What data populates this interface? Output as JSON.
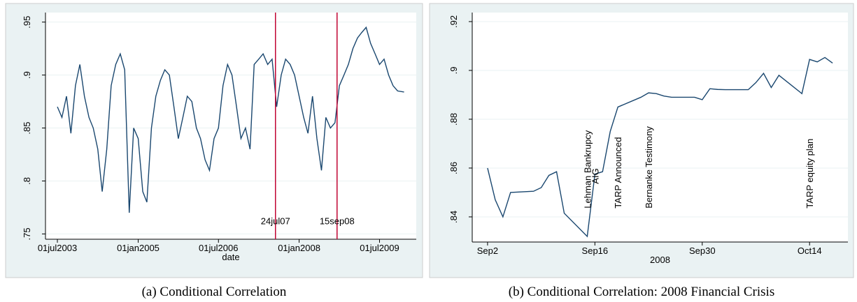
{
  "chart_data": [
    {
      "type": "line",
      "caption": "(a) Conditional Correlation",
      "xlabel": "date",
      "x": [
        "2003-07-01",
        "2003-08-01",
        "2003-09-01",
        "2003-10-01",
        "2003-11-01",
        "2003-12-01",
        "2004-01-01",
        "2004-02-01",
        "2004-03-01",
        "2004-04-01",
        "2004-05-01",
        "2004-06-01",
        "2004-07-01",
        "2004-08-01",
        "2004-09-01",
        "2004-10-01",
        "2004-11-01",
        "2004-12-01",
        "2005-01-01",
        "2005-02-01",
        "2005-03-01",
        "2005-04-01",
        "2005-05-01",
        "2005-06-01",
        "2005-07-01",
        "2005-08-01",
        "2005-09-01",
        "2005-10-01",
        "2005-11-01",
        "2005-12-01",
        "2006-01-01",
        "2006-02-01",
        "2006-03-01",
        "2006-04-01",
        "2006-05-01",
        "2006-06-01",
        "2006-07-01",
        "2006-08-01",
        "2006-09-01",
        "2006-10-01",
        "2006-11-01",
        "2006-12-01",
        "2007-01-01",
        "2007-02-01",
        "2007-03-01",
        "2007-04-01",
        "2007-05-01",
        "2007-06-01",
        "2007-07-01",
        "2007-08-01",
        "2007-09-01",
        "2007-10-01",
        "2007-11-01",
        "2007-12-01",
        "2008-01-01",
        "2008-02-01",
        "2008-03-01",
        "2008-04-01",
        "2008-05-01",
        "2008-06-01",
        "2008-07-01",
        "2008-08-01",
        "2008-09-01",
        "2008-10-01",
        "2008-11-01",
        "2008-12-01",
        "2009-01-01",
        "2009-02-01",
        "2009-03-01",
        "2009-04-01",
        "2009-05-01",
        "2009-06-01",
        "2009-07-01",
        "2009-08-01",
        "2009-09-01",
        "2009-10-01",
        "2009-11-01",
        "2009-12-15"
      ],
      "series": [
        {
          "name": "Conditional correlation",
          "color": "#1a476f",
          "values": [
            0.87,
            0.86,
            0.88,
            0.845,
            0.89,
            0.91,
            0.88,
            0.86,
            0.85,
            0.83,
            0.79,
            0.83,
            0.89,
            0.91,
            0.92,
            0.905,
            0.77,
            0.85,
            0.84,
            0.79,
            0.78,
            0.85,
            0.88,
            0.895,
            0.905,
            0.9,
            0.87,
            0.84,
            0.86,
            0.88,
            0.875,
            0.85,
            0.84,
            0.82,
            0.81,
            0.84,
            0.85,
            0.89,
            0.91,
            0.9,
            0.87,
            0.84,
            0.85,
            0.83,
            0.91,
            0.915,
            0.92,
            0.91,
            0.915,
            0.87,
            0.9,
            0.915,
            0.91,
            0.9,
            0.88,
            0.86,
            0.845,
            0.88,
            0.84,
            0.81,
            0.86,
            0.85,
            0.855,
            0.89,
            0.9,
            0.91,
            0.925,
            0.935,
            0.94,
            0.945,
            0.93,
            0.92,
            0.91,
            0.915,
            0.9,
            0.89,
            0.885,
            0.884
          ]
        }
      ],
      "xlim": [
        "2003-04-11",
        "2010-03-08"
      ],
      "xticks": [
        {
          "value": "2003-07-01",
          "label": "01jul2003"
        },
        {
          "value": "2005-01-01",
          "label": "01jan2005"
        },
        {
          "value": "2006-07-01",
          "label": "01jul2006"
        },
        {
          "value": "2008-01-01",
          "label": "01jan2008"
        },
        {
          "value": "2009-07-01",
          "label": "01jul2009"
        }
      ],
      "ylim": [
        0.745,
        0.959
      ],
      "yticks": [
        {
          "value": 0.75,
          "label": ".75"
        },
        {
          "value": 0.8,
          "label": ".8"
        },
        {
          "value": 0.85,
          "label": ".85"
        },
        {
          "value": 0.9,
          "label": ".9"
        },
        {
          "value": 0.95,
          "label": ".95"
        }
      ],
      "grid": true,
      "vlines": [
        {
          "x": "2007-07-24",
          "label": "24jul07",
          "label_y": 0.759,
          "color": "#c10534"
        },
        {
          "x": "2008-09-15",
          "label": "15sep08",
          "label_y": 0.759,
          "color": "#c10534"
        }
      ]
    },
    {
      "type": "line",
      "caption": "(b) Conditional Correlation: 2008 Financial Crisis",
      "xlabel": "2008",
      "x": [
        "2008-09-02",
        "2008-09-03",
        "2008-09-04",
        "2008-09-05",
        "2008-09-08",
        "2008-09-09",
        "2008-09-10",
        "2008-09-11",
        "2008-09-12",
        "2008-09-15",
        "2008-09-16",
        "2008-09-17",
        "2008-09-18",
        "2008-09-19",
        "2008-09-22",
        "2008-09-23",
        "2008-09-24",
        "2008-09-25",
        "2008-09-26",
        "2008-09-29",
        "2008-09-30",
        "2008-10-01",
        "2008-10-02",
        "2008-10-03",
        "2008-10-06",
        "2008-10-07",
        "2008-10-08",
        "2008-10-09",
        "2008-10-10",
        "2008-10-13",
        "2008-10-14",
        "2008-10-15",
        "2008-10-16",
        "2008-10-17"
      ],
      "series": [
        {
          "name": "Conditional correlation",
          "color": "#1a476f",
          "values": [
            0.86,
            0.847,
            0.84,
            0.85,
            0.8505,
            0.852,
            0.857,
            0.8585,
            0.8415,
            0.832,
            0.8575,
            0.8585,
            0.875,
            0.885,
            0.889,
            0.8908,
            0.8905,
            0.8895,
            0.889,
            0.889,
            0.888,
            0.8925,
            0.8922,
            0.8921,
            0.8921,
            0.895,
            0.8988,
            0.893,
            0.898,
            0.8905,
            0.9045,
            0.9035,
            0.9053,
            0.903
          ]
        }
      ],
      "xlim": [
        "2008-08-31",
        "2008-10-19"
      ],
      "xticks": [
        {
          "value": "2008-09-02",
          "label": "Sep2"
        },
        {
          "value": "2008-09-16",
          "label": "Sep16"
        },
        {
          "value": "2008-09-30",
          "label": "Sep30"
        },
        {
          "value": "2008-10-14",
          "label": "Oct14"
        }
      ],
      "ylim": [
        0.8297,
        0.9237
      ],
      "yticks": [
        {
          "value": 0.84,
          "label": ".84"
        },
        {
          "value": 0.86,
          "label": ".86"
        },
        {
          "value": 0.88,
          "label": ".88"
        },
        {
          "value": 0.9,
          "label": ".9"
        },
        {
          "value": 0.92,
          "label": ".92"
        }
      ],
      "grid": true,
      "annotations": [
        {
          "x": "2008-09-15",
          "y": 0.8435,
          "text": "Lehman Bankrupcy"
        },
        {
          "x": "2008-09-16",
          "y": 0.8535,
          "text": "AIG"
        },
        {
          "x": "2008-09-19",
          "y": 0.8435,
          "text": "TARP Announced"
        },
        {
          "x": "2008-09-23",
          "y": 0.8435,
          "text": "Bernanke Testimony"
        },
        {
          "x": "2008-10-14",
          "y": 0.8435,
          "text": "TARP equity plan"
        }
      ]
    }
  ]
}
